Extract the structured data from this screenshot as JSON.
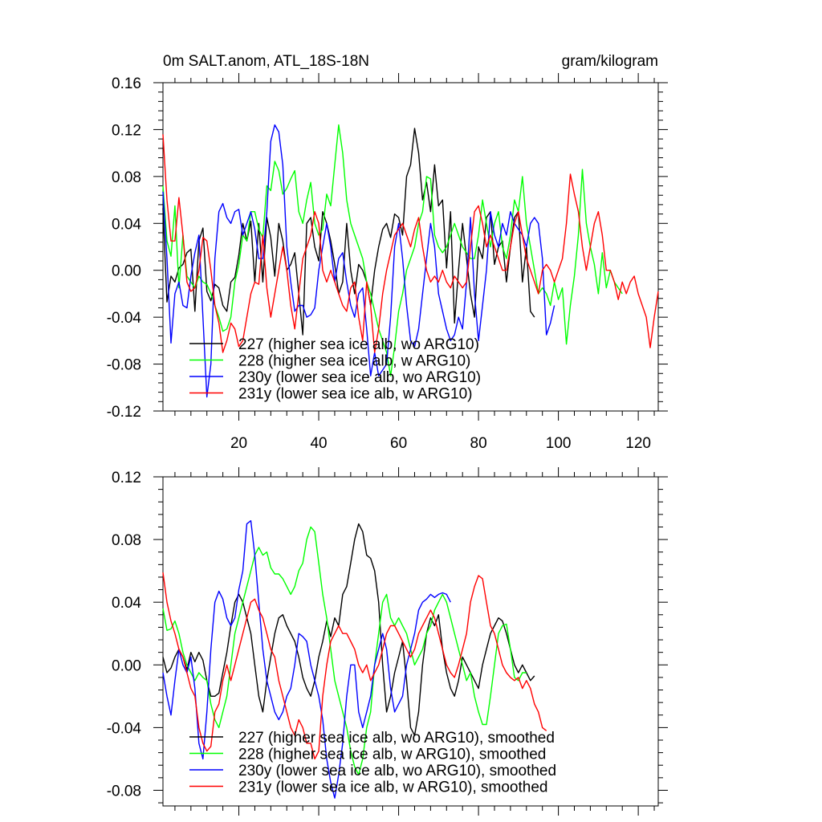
{
  "chart_data": [
    {
      "type": "line",
      "title_left": "0m SALT.anom, ATL_18S-18N",
      "title_right": "gram/kilogram",
      "xlim": [
        1,
        125
      ],
      "ylim": [
        -0.12,
        0.16
      ],
      "yticks": [
        "0.16",
        "0.12",
        "0.08",
        "0.04",
        "0.00",
        "-0.04",
        "-0.08",
        "-0.12"
      ],
      "xticks": [
        "20",
        "40",
        "60",
        "80",
        "100",
        "120"
      ],
      "grid": false,
      "legend_position": "bottom-left",
      "series": [
        {
          "name": "227 (higher sea ice alb, wo ARG10)",
          "color": "#000000",
          "values": [
            0.053,
            -0.027,
            -0.005,
            -0.01,
            0.002,
            0.005,
            0.015,
            0.018,
            -0.035,
            0.025,
            0.036,
            -0.018,
            -0.026,
            -0.012,
            -0.015,
            -0.03,
            -0.035,
            -0.01,
            -0.006,
            0.013,
            0.04,
            0.025,
            0.042,
            -0.01,
            0.04,
            -0.01,
            0.045,
            0.028,
            -0.005,
            0.04,
            0.025,
            0.0,
            0.005,
            0.015,
            -0.02,
            -0.055,
            0.04,
            0.045,
            0.02,
            0.008,
            0.05,
            0.04,
            0.025,
            0.005,
            -0.02,
            -0.01,
            0.04,
            0.0,
            -0.02,
            0.005,
            0.0,
            -0.01,
            -0.03,
            0.0,
            0.02,
            0.035,
            0.04,
            0.028,
            0.048,
            0.045,
            0.03,
            0.08,
            0.09,
            0.121,
            0.1,
            0.06,
            0.075,
            0.05,
            0.09,
            0.055,
            0.06,
            0.002,
            0.05,
            -0.045,
            0.0,
            0.04,
            0.01,
            -0.02,
            -0.04,
            0.02,
            0.01,
            0.045,
            0.05,
            0.005,
            0.02,
            0.025,
            -0.01,
            0.02,
            0.045,
            0.05,
            -0.01,
            0.02,
            -0.035,
            -0.04
          ]
        },
        {
          "name": "228 (higher sea ice alb, w ARG10)",
          "color": "#00ff00",
          "values": [
            0.072,
            0.025,
            0.012,
            0.055,
            -0.015,
            0.03,
            -0.005,
            -0.01,
            -0.015,
            -0.005,
            -0.01,
            -0.012,
            -0.02,
            -0.03,
            -0.04,
            -0.052,
            -0.05,
            -0.04,
            -0.01,
            0.005,
            0.03,
            0.025,
            0.05,
            0.05,
            0.035,
            0.028,
            0.072,
            0.068,
            0.093,
            0.085,
            0.065,
            0.07,
            0.078,
            0.085,
            0.05,
            0.04,
            0.06,
            0.075,
            0.04,
            0.03,
            0.035,
            0.065,
            0.055,
            0.09,
            0.124,
            0.1,
            0.06,
            0.04,
            0.03,
            0.02,
            0.01,
            -0.01,
            -0.02,
            -0.035,
            -0.05,
            -0.06,
            -0.07,
            -0.09,
            -0.065,
            -0.035,
            -0.02,
            0.0,
            0.01,
            0.02,
            0.04,
            0.05,
            0.08,
            0.078,
            0.03,
            0.02,
            0.015,
            0.02,
            0.03,
            0.04,
            0.03,
            0.02,
            0.015,
            0.01,
            0.01,
            0.03,
            0.06,
            0.04,
            0.02,
            0.04,
            0.05,
            0.02,
            0.01,
            0.03,
            0.06,
            0.05,
            0.08,
            0.04,
            0.02,
            0.0,
            -0.02,
            -0.015,
            -0.02,
            -0.03,
            -0.01,
            -0.025,
            -0.015,
            -0.063,
            -0.03,
            -0.005,
            0.03,
            0.086,
            0.04,
            0.02,
            0.005,
            -0.02,
            0.015,
            -0.015,
            0.0,
            -0.01,
            -0.015,
            -0.02
          ]
        },
        {
          "name": "230y (lower sea ice alb, wo ARG10)",
          "color": "#0000ff",
          "values": [
            0.067,
            0.01,
            -0.062,
            -0.02,
            -0.01,
            -0.03,
            -0.032,
            -0.005,
            0.015,
            0.03,
            -0.04,
            -0.108,
            -0.08,
            0.01,
            0.05,
            0.057,
            0.045,
            0.04,
            0.05,
            0.052,
            0.03,
            0.04,
            0.05,
            0.035,
            0.01,
            0.01,
            0.05,
            0.11,
            0.124,
            0.118,
            0.09,
            0.02,
            -0.01,
            -0.035,
            -0.03,
            -0.03,
            -0.04,
            -0.038,
            -0.032,
            0.0,
            0.02,
            0.04,
            0.02,
            -0.01,
            0.01,
            0.015,
            -0.01,
            -0.03,
            -0.04,
            -0.02,
            -0.015,
            -0.05,
            -0.09,
            -0.07,
            -0.09,
            -0.085,
            -0.08,
            -0.04,
            0.02,
            0.04,
            0.01,
            -0.03,
            -0.06,
            -0.065,
            -0.05,
            -0.02,
            0.01,
            0.04,
            0.02,
            -0.02,
            -0.035,
            -0.05,
            -0.06,
            -0.055,
            -0.04,
            -0.05,
            -0.01,
            0.045,
            -0.02,
            -0.06,
            -0.03,
            0.0,
            0.05,
            0.03,
            0.02,
            0.04,
            0.03,
            0.05,
            0.04,
            0.035,
            0.03,
            0.02,
            0.04,
            0.045,
            0.04,
            0.01,
            -0.055,
            -0.045,
            -0.03
          ]
        },
        {
          "name": "231y (lower sea ice alb, w ARG10)",
          "color": "#ff0000",
          "values": [
            0.116,
            0.06,
            0.025,
            0.025,
            0.062,
            0.03,
            -0.01,
            -0.018,
            -0.015,
            0.0,
            0.028,
            0.025,
            0.0,
            -0.03,
            -0.045,
            -0.07,
            -0.06,
            -0.045,
            -0.05,
            -0.065,
            -0.06,
            -0.04,
            -0.02,
            -0.01,
            -0.012,
            0.03,
            -0.015,
            -0.04,
            -0.02,
            0.0,
            0.02,
            0.0,
            -0.03,
            -0.05,
            -0.02,
            0.01,
            0.02,
            0.03,
            0.05,
            0.04,
            0.0,
            -0.01,
            0.0,
            -0.01,
            -0.02,
            -0.03,
            -0.035,
            -0.015,
            -0.01,
            -0.04,
            -0.06,
            -0.01,
            -0.03,
            -0.07,
            -0.05,
            -0.02,
            0.0,
            0.015,
            0.03,
            0.035,
            0.04,
            0.03,
            0.02,
            0.035,
            0.045,
            0.02,
            0.0,
            -0.01,
            -0.005,
            -0.01,
            0.0,
            -0.01,
            -0.015,
            -0.005,
            -0.01,
            -0.015,
            -0.01,
            0.02,
            0.05,
            0.055,
            0.04,
            0.02,
            0.03,
            0.02,
            0.01,
            0.0,
            0.0,
            0.02,
            0.04,
            0.05,
            0.03,
            0.01,
            0.0,
            -0.01,
            -0.02,
            0.0,
            0.005,
            0.0,
            -0.01,
            0.0,
            0.01,
            0.04,
            0.082,
            0.065,
            0.05,
            0.02,
            0.0,
            0.02,
            0.04,
            0.05,
            0.03,
            0.0,
            0.0,
            -0.01,
            -0.025,
            -0.01,
            -0.02,
            -0.01,
            -0.005,
            -0.02,
            -0.03,
            -0.04,
            -0.066,
            -0.04,
            -0.018
          ]
        }
      ]
    },
    {
      "type": "line",
      "xlim": [
        1,
        125
      ],
      "ylim": [
        -0.09,
        0.12
      ],
      "yticks": [
        "0.12",
        "0.08",
        "0.04",
        "0.00",
        "-0.04",
        "-0.08"
      ],
      "grid": false,
      "legend_position": "bottom-left",
      "series": [
        {
          "name": "227 (higher sea ice alb, wo ARG10), smoothed",
          "color": "#000000",
          "values": [
            0.005,
            -0.005,
            -0.002,
            0.005,
            0.01,
            0.005,
            -0.003,
            0.008,
            0.002,
            0.008,
            0.003,
            -0.01,
            -0.02,
            -0.02,
            -0.018,
            -0.005,
            0.008,
            0.025,
            0.04,
            0.045,
            0.04,
            0.03,
            0.02,
            0.0,
            -0.02,
            -0.03,
            -0.01,
            0.005,
            0.02,
            0.03,
            0.032,
            0.025,
            0.02,
            0.015,
            0.005,
            -0.008,
            -0.015,
            -0.02,
            -0.01,
            0.005,
            0.015,
            0.028,
            0.018,
            0.03,
            0.025,
            0.045,
            0.05,
            0.065,
            0.08,
            0.09,
            0.085,
            0.07,
            0.068,
            0.06,
            0.04,
            0.0,
            -0.03,
            -0.02,
            -0.005,
            0.005,
            0.015,
            -0.01,
            -0.04,
            -0.045,
            -0.03,
            0.0,
            0.02,
            0.03,
            0.025,
            0.032,
            0.01,
            -0.005,
            -0.015,
            -0.02,
            -0.01,
            0.005,
            0.0,
            -0.005,
            -0.01,
            -0.015,
            0.0,
            0.01,
            0.02,
            0.025,
            0.03,
            0.028,
            0.02,
            0.01,
            0.0,
            -0.005,
            0.0,
            -0.005,
            -0.01,
            -0.007
          ]
        },
        {
          "name": "228 (higher sea ice alb, w ARG10), smoothed",
          "color": "#00ff00",
          "values": [
            0.036,
            0.022,
            0.023,
            0.028,
            0.02,
            0.008,
            0.0,
            -0.005,
            -0.01,
            -0.005,
            -0.008,
            -0.01,
            -0.025,
            -0.035,
            -0.04,
            -0.03,
            -0.02,
            0.0,
            0.02,
            0.03,
            0.04,
            0.05,
            0.06,
            0.07,
            0.075,
            0.07,
            0.072,
            0.062,
            0.058,
            0.058,
            0.055,
            0.05,
            0.045,
            0.05,
            0.06,
            0.065,
            0.08,
            0.088,
            0.085,
            0.065,
            0.045,
            0.03,
            0.01,
            -0.01,
            -0.02,
            -0.03,
            -0.04,
            -0.055,
            -0.065,
            -0.07,
            -0.06,
            -0.04,
            -0.03,
            0.0,
            0.02,
            0.04,
            0.045,
            0.03,
            0.025,
            0.03,
            0.025,
            0.02,
            0.01,
            0.0,
            0.005,
            0.01,
            0.02,
            0.025,
            0.035,
            0.04,
            0.045,
            0.04,
            0.03,
            0.02,
            0.01,
            0.0,
            -0.01,
            -0.005,
            -0.02,
            -0.03,
            -0.038,
            -0.038,
            -0.02,
            0.0,
            0.02,
            0.025,
            0.026,
            0.01,
            -0.008,
            -0.01,
            -0.005,
            -0.005
          ]
        },
        {
          "name": "230y (lower sea ice alb, wo ARG10), smoothed",
          "color": "#0000ff",
          "values": [
            -0.005,
            -0.02,
            -0.032,
            -0.01,
            0.01,
            0.0,
            -0.005,
            0.005,
            -0.015,
            -0.05,
            -0.06,
            -0.03,
            0.01,
            0.04,
            0.047,
            0.042,
            0.03,
            0.025,
            0.03,
            0.048,
            0.06,
            0.09,
            0.092,
            0.07,
            0.04,
            0.01,
            -0.01,
            -0.02,
            -0.03,
            -0.035,
            -0.03,
            -0.02,
            -0.015,
            0.0,
            0.02,
            0.018,
            0.015,
            0.0,
            -0.01,
            -0.02,
            -0.035,
            -0.06,
            -0.075,
            -0.085,
            -0.07,
            -0.05,
            -0.02,
            0.0,
            0.0,
            -0.03,
            -0.04,
            -0.03,
            -0.02,
            0.0,
            0.01,
            0.02,
            0.01,
            -0.015,
            -0.03,
            -0.025,
            -0.02,
            0.0,
            0.01,
            0.02,
            0.035,
            0.04,
            0.042,
            0.045,
            0.043,
            0.045,
            0.046,
            0.045,
            0.04
          ]
        },
        {
          "name": "231y (lower sea ice alb, w ARG10), smoothed",
          "color": "#ff0000",
          "values": [
            0.059,
            0.04,
            0.028,
            0.02,
            0.01,
            0.005,
            -0.005,
            -0.015,
            -0.02,
            -0.04,
            -0.05,
            -0.055,
            -0.052,
            -0.03,
            -0.025,
            -0.01,
            0.0,
            -0.01,
            0.0,
            0.01,
            0.02,
            0.03,
            0.04,
            0.042,
            0.035,
            0.03,
            0.02,
            0.01,
            0.005,
            -0.01,
            -0.02,
            -0.03,
            -0.04,
            -0.045,
            -0.035,
            -0.04,
            -0.05,
            -0.05,
            -0.06,
            -0.055,
            -0.02,
            0.0,
            0.015,
            0.02,
            0.025,
            0.02,
            0.02,
            0.015,
            0.01,
            0.0,
            -0.005,
            0.0,
            -0.01,
            -0.005,
            0.0,
            0.01,
            0.02,
            0.025,
            0.025,
            0.02,
            0.015,
            0.01,
            0.005,
            0.01,
            0.02,
            0.025,
            0.03,
            0.035,
            0.03,
            0.02,
            0.01,
            0.0,
            -0.005,
            -0.008,
            0.0,
            0.01,
            0.02,
            0.04,
            0.05,
            0.057,
            0.055,
            0.04,
            0.025,
            0.02,
            0.01,
            0.0,
            -0.005,
            -0.008,
            -0.01,
            -0.008,
            -0.015,
            -0.01,
            -0.015,
            -0.025,
            -0.03,
            -0.04,
            -0.042
          ]
        }
      ]
    }
  ]
}
